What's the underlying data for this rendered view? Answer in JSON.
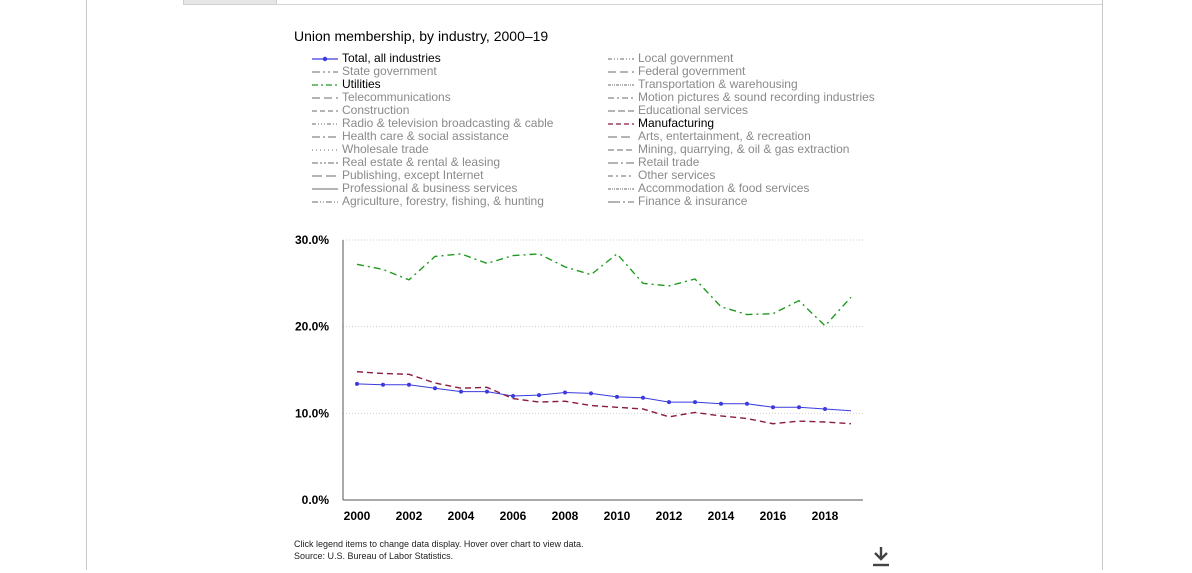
{
  "chart_data": {
    "type": "line",
    "title": "Union membership, by industry, 2000–19",
    "xlabel": "",
    "ylabel": "",
    "x": [
      2000,
      2001,
      2002,
      2003,
      2004,
      2005,
      2006,
      2007,
      2008,
      2009,
      2010,
      2011,
      2012,
      2013,
      2014,
      2015,
      2016,
      2017,
      2018,
      2019
    ],
    "x_ticks": [
      "2000",
      "2002",
      "2004",
      "2006",
      "2008",
      "2010",
      "2012",
      "2014",
      "2016",
      "2018"
    ],
    "y_ticks": [
      "30.0%",
      "20.0%",
      "10.0%",
      "0.0%"
    ],
    "ylim": [
      0,
      30
    ],
    "grid": true,
    "series": [
      {
        "name": "Total, all industries",
        "color": "#3a3ae0",
        "dash": "solid",
        "marker": true,
        "visible": true,
        "values": [
          13.4,
          13.3,
          13.3,
          12.9,
          12.5,
          12.5,
          12.0,
          12.1,
          12.4,
          12.3,
          11.9,
          11.8,
          11.3,
          11.3,
          11.1,
          11.1,
          10.7,
          10.7,
          10.5,
          10.3
        ]
      },
      {
        "name": "Utilities",
        "color": "#1f9a1f",
        "dash": "dashdot",
        "marker": false,
        "visible": true,
        "values": [
          27.2,
          26.6,
          25.4,
          28.1,
          28.4,
          27.3,
          28.2,
          28.4,
          26.9,
          26.0,
          28.4,
          25.0,
          24.7,
          25.5,
          22.3,
          21.4,
          21.5,
          23.0,
          20.1,
          23.4
        ]
      },
      {
        "name": "Manufacturing",
        "color": "#8b1c3c",
        "dash": "dashed",
        "marker": false,
        "visible": true,
        "values": [
          14.8,
          14.6,
          14.5,
          13.5,
          12.9,
          13.0,
          11.7,
          11.3,
          11.4,
          10.9,
          10.7,
          10.5,
          9.6,
          10.1,
          9.7,
          9.4,
          8.8,
          9.1,
          9.0,
          8.8
        ]
      }
    ]
  },
  "legend": {
    "left": [
      {
        "label": "Total, all industries",
        "active": true,
        "color": "#3a3ae0",
        "dash": "solid",
        "marker": true
      },
      {
        "label": "State government",
        "active": false,
        "color": "#888888",
        "dash": "8 3 2 3 2 3"
      },
      {
        "label": "Utilities",
        "active": true,
        "color": "#1f9a1f",
        "dash": "6 3 2 3"
      },
      {
        "label": "Telecommunications",
        "active": false,
        "color": "#888888",
        "dash": "8 4"
      },
      {
        "label": "Construction",
        "active": false,
        "color": "#888888",
        "dash": "5 3"
      },
      {
        "label": "Radio & television broadcasting & cable",
        "active": false,
        "color": "#888888",
        "dash": "4 2 1 2 1 2 1 2"
      },
      {
        "label": "Health care & social assistance",
        "active": false,
        "color": "#888888",
        "dash": "8 3 2 3"
      },
      {
        "label": "Wholesale trade",
        "active": false,
        "color": "#888888",
        "dash": "1 3"
      },
      {
        "label": "Real estate & rental & leasing",
        "active": false,
        "color": "#888888",
        "dash": "6 2 2 2 2 2"
      },
      {
        "label": "Publishing, except Internet",
        "active": false,
        "color": "#888888",
        "dash": "10 4"
      },
      {
        "label": "Professional & business services",
        "active": false,
        "color": "#888888",
        "dash": "solid"
      },
      {
        "label": "Agriculture, forestry, fishing, & hunting",
        "active": false,
        "color": "#888888",
        "dash": "6 2 1 2 1 2"
      }
    ],
    "right": [
      {
        "label": "Local government",
        "active": false,
        "color": "#888888",
        "dash": "4 2 1 2 1 2"
      },
      {
        "label": "Federal government",
        "active": false,
        "color": "#888888",
        "dash": "8 4"
      },
      {
        "label": "Transportation & warehousing",
        "active": false,
        "color": "#888888",
        "dash": "3 1 1 1 1 1"
      },
      {
        "label": "Motion pictures & sound recording industries",
        "active": false,
        "color": "#888888",
        "dash": "6 3 2 3"
      },
      {
        "label": "Educational services",
        "active": false,
        "color": "#888888",
        "dash": "7 3"
      },
      {
        "label": "Manufacturing",
        "active": true,
        "color": "#8b1c3c",
        "dash": "5 3"
      },
      {
        "label": "Arts, entertainment, & recreation",
        "active": false,
        "color": "#888888",
        "dash": "9 4"
      },
      {
        "label": "Mining, quarrying, & oil & gas extraction",
        "active": false,
        "color": "#888888",
        "dash": "6 3"
      },
      {
        "label": "Retail trade",
        "active": false,
        "color": "#888888",
        "dash": "10 3 2 3"
      },
      {
        "label": "Other services",
        "active": false,
        "color": "#888888",
        "dash": "5 3 2 3"
      },
      {
        "label": "Accommodation & food services",
        "active": false,
        "color": "#888888",
        "dash": "3 1 1 1 1 1"
      },
      {
        "label": "Finance & insurance",
        "active": false,
        "color": "#888888",
        "dash": "12 3 2 3"
      }
    ]
  },
  "footer": {
    "instructions": "Click legend items to change data display. Hover over chart to view data.",
    "source": "Source: U.S. Bureau of Labor Statistics."
  },
  "icons": {
    "download": "download-icon"
  }
}
